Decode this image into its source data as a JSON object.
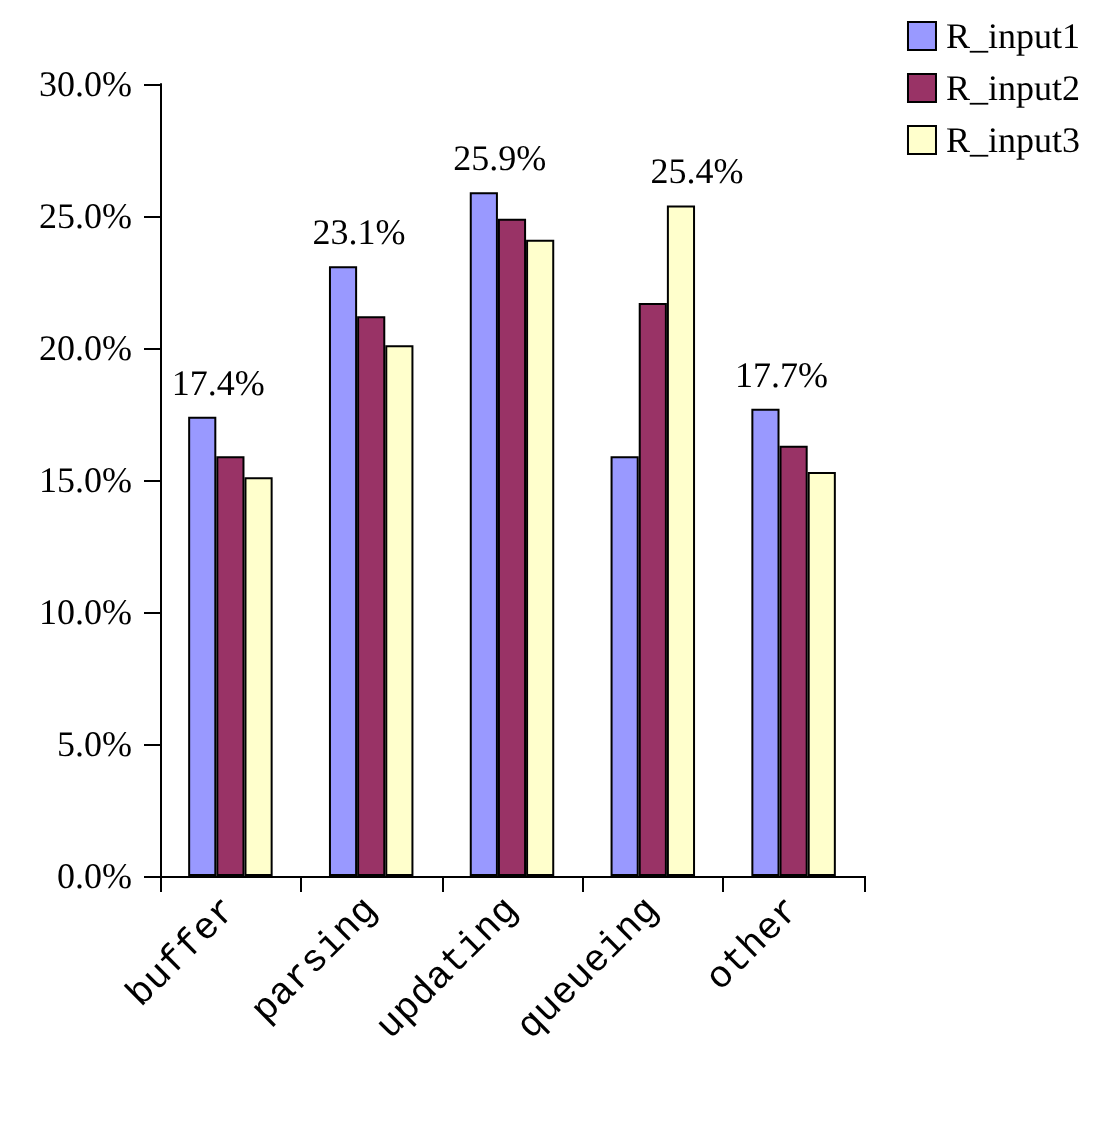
{
  "chart_data": {
    "type": "bar",
    "categories": [
      "buffer",
      "parsing",
      "updating",
      "queueing",
      "other"
    ],
    "series": [
      {
        "name": "R_input1",
        "color": "#9999ff",
        "values": [
          17.4,
          23.1,
          25.9,
          15.9,
          17.7
        ],
        "value_labels": [
          "17.4%",
          "23.1%",
          "25.9%",
          null,
          "17.7%"
        ]
      },
      {
        "name": "R_input2",
        "color": "#993366",
        "values": [
          15.9,
          21.2,
          24.9,
          21.7,
          16.3
        ]
      },
      {
        "name": "R_input3",
        "color": "#ffffcc",
        "values": [
          15.1,
          20.1,
          24.1,
          25.4,
          15.3
        ],
        "value_labels": [
          null,
          null,
          null,
          "25.4%",
          null
        ]
      }
    ],
    "ylim": [
      0,
      30
    ],
    "yticks": [
      {
        "value": 0,
        "label": "0.0%"
      },
      {
        "value": 5,
        "label": "5.0%"
      },
      {
        "value": 10,
        "label": "10.0%"
      },
      {
        "value": 15,
        "label": "15.0%"
      },
      {
        "value": 20,
        "label": "20.0%"
      },
      {
        "value": 25,
        "label": "25.0%"
      },
      {
        "value": 30,
        "label": "30.0%"
      }
    ],
    "grid": false,
    "legend": "top right"
  }
}
